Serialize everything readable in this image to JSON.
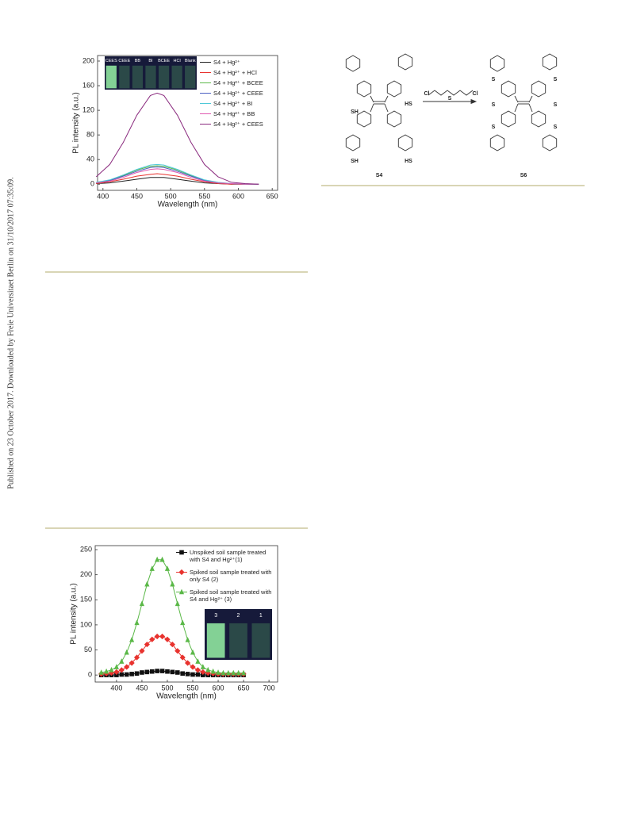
{
  "side_note": "Published on 23 October 2017. Downloaded by Freie Universitaet Berlin on 31/10/2017 07:35:09.",
  "scheme": {
    "reactant": "S4",
    "product": "S6",
    "thiol_labels": [
      "SH",
      "HS",
      "SH",
      "HS"
    ],
    "reagent": [
      "Cl",
      "S",
      "Cl"
    ],
    "product_s_labels": [
      "S",
      "S",
      "S",
      "S",
      "S",
      "S"
    ]
  },
  "chart_data": [
    {
      "type": "line",
      "xlabel": "Wavelength (nm)",
      "ylabel": "PL intensity (a.u.)",
      "x": [
        390,
        410,
        430,
        450,
        470,
        480,
        490,
        510,
        530,
        550,
        570,
        590,
        610,
        630
      ],
      "xlim": [
        392,
        658
      ],
      "xticks": [
        400,
        450,
        500,
        550,
        600,
        650
      ],
      "ylim": [
        -10,
        209
      ],
      "yticks": [
        0,
        40,
        80,
        120,
        160,
        200
      ],
      "legend": "upper right",
      "inset_labels": [
        "CEES",
        "CEEE",
        "BB",
        "BI",
        "BCEE",
        "HCl",
        "Blank"
      ],
      "series": [
        {
          "name": "S4 + Hg²⁺",
          "color": "#222222",
          "values": [
            1,
            2,
            5,
            8,
            11,
            11,
            11,
            8,
            5,
            2,
            1,
            0,
            0,
            0
          ]
        },
        {
          "name": "S4 + Hg²⁺ + HCl",
          "color": "#e8322e",
          "values": [
            1,
            4,
            8,
            13,
            16,
            17,
            16,
            13,
            8,
            4,
            1,
            0,
            0,
            0
          ]
        },
        {
          "name": "S4 + Hg²⁺ + BCEE",
          "color": "#5bb848",
          "values": [
            2,
            6,
            14,
            23,
            29,
            30,
            29,
            23,
            14,
            6,
            2,
            1,
            0,
            0
          ]
        },
        {
          "name": "S4 + Hg²⁺ + CEEE",
          "color": "#4a5fc1",
          "values": [
            2,
            6,
            13,
            21,
            27,
            28,
            27,
            21,
            13,
            6,
            2,
            1,
            0,
            0
          ]
        },
        {
          "name": "S4 + Hg²⁺ + BI",
          "color": "#4fc9d8",
          "values": [
            3,
            7,
            15,
            24,
            31,
            32,
            31,
            24,
            15,
            7,
            3,
            1,
            0,
            0
          ]
        },
        {
          "name": "S4 + Hg²⁺ + BB",
          "color": "#e05ab0",
          "values": [
            2,
            5,
            11,
            19,
            24,
            25,
            24,
            19,
            11,
            5,
            2,
            1,
            0,
            0
          ]
        },
        {
          "name": "S4 + Hg²⁺ + CEES",
          "color": "#8a2a7e",
          "values": [
            12,
            32,
            68,
            112,
            144,
            148,
            144,
            112,
            68,
            32,
            12,
            3,
            1,
            0
          ]
        }
      ]
    },
    {
      "type": "line",
      "xlabel": "Wavelength (nm)",
      "ylabel": "PL intensity (a.u.)",
      "x": [
        370,
        380,
        390,
        400,
        410,
        420,
        430,
        440,
        450,
        460,
        470,
        480,
        490,
        500,
        510,
        520,
        530,
        540,
        550,
        560,
        570,
        580,
        590,
        600,
        610,
        620,
        630,
        640,
        650
      ],
      "xlim": [
        358,
        717
      ],
      "xticks": [
        400,
        450,
        500,
        550,
        600,
        650,
        700
      ],
      "ylim": [
        -14,
        258
      ],
      "yticks": [
        0,
        50,
        100,
        150,
        200,
        250
      ],
      "legend": "upper right",
      "inset_labels": [
        "3",
        "2",
        "1"
      ],
      "series": [
        {
          "name": "Unspiked soil sample treated with S4 and Hg²⁺(1)",
          "color": "#111111",
          "marker": "square",
          "values": [
            0,
            0,
            0,
            0,
            1,
            1,
            2,
            3,
            5,
            6,
            7,
            8,
            8,
            7,
            6,
            5,
            3,
            2,
            1,
            1,
            0,
            0,
            0,
            0,
            0,
            0,
            0,
            0,
            0
          ]
        },
        {
          "name": "Spiked soil sample treated with only S4 (2)",
          "color": "#e8322e",
          "marker": "diamond",
          "values": [
            2,
            3,
            4,
            6,
            10,
            16,
            24,
            35,
            48,
            61,
            71,
            77,
            77,
            71,
            61,
            48,
            35,
            24,
            16,
            10,
            6,
            4,
            3,
            2,
            2,
            2,
            2,
            2,
            2
          ]
        },
        {
          "name": "Spiked soil sample treated with S4 and Hg²⁺ (3)",
          "color": "#5bb848",
          "marker": "triangle",
          "values": [
            5,
            7,
            10,
            16,
            27,
            45,
            70,
            104,
            142,
            181,
            212,
            230,
            230,
            212,
            181,
            142,
            104,
            70,
            45,
            27,
            16,
            10,
            7,
            5,
            4,
            4,
            4,
            4,
            4
          ]
        }
      ]
    }
  ]
}
